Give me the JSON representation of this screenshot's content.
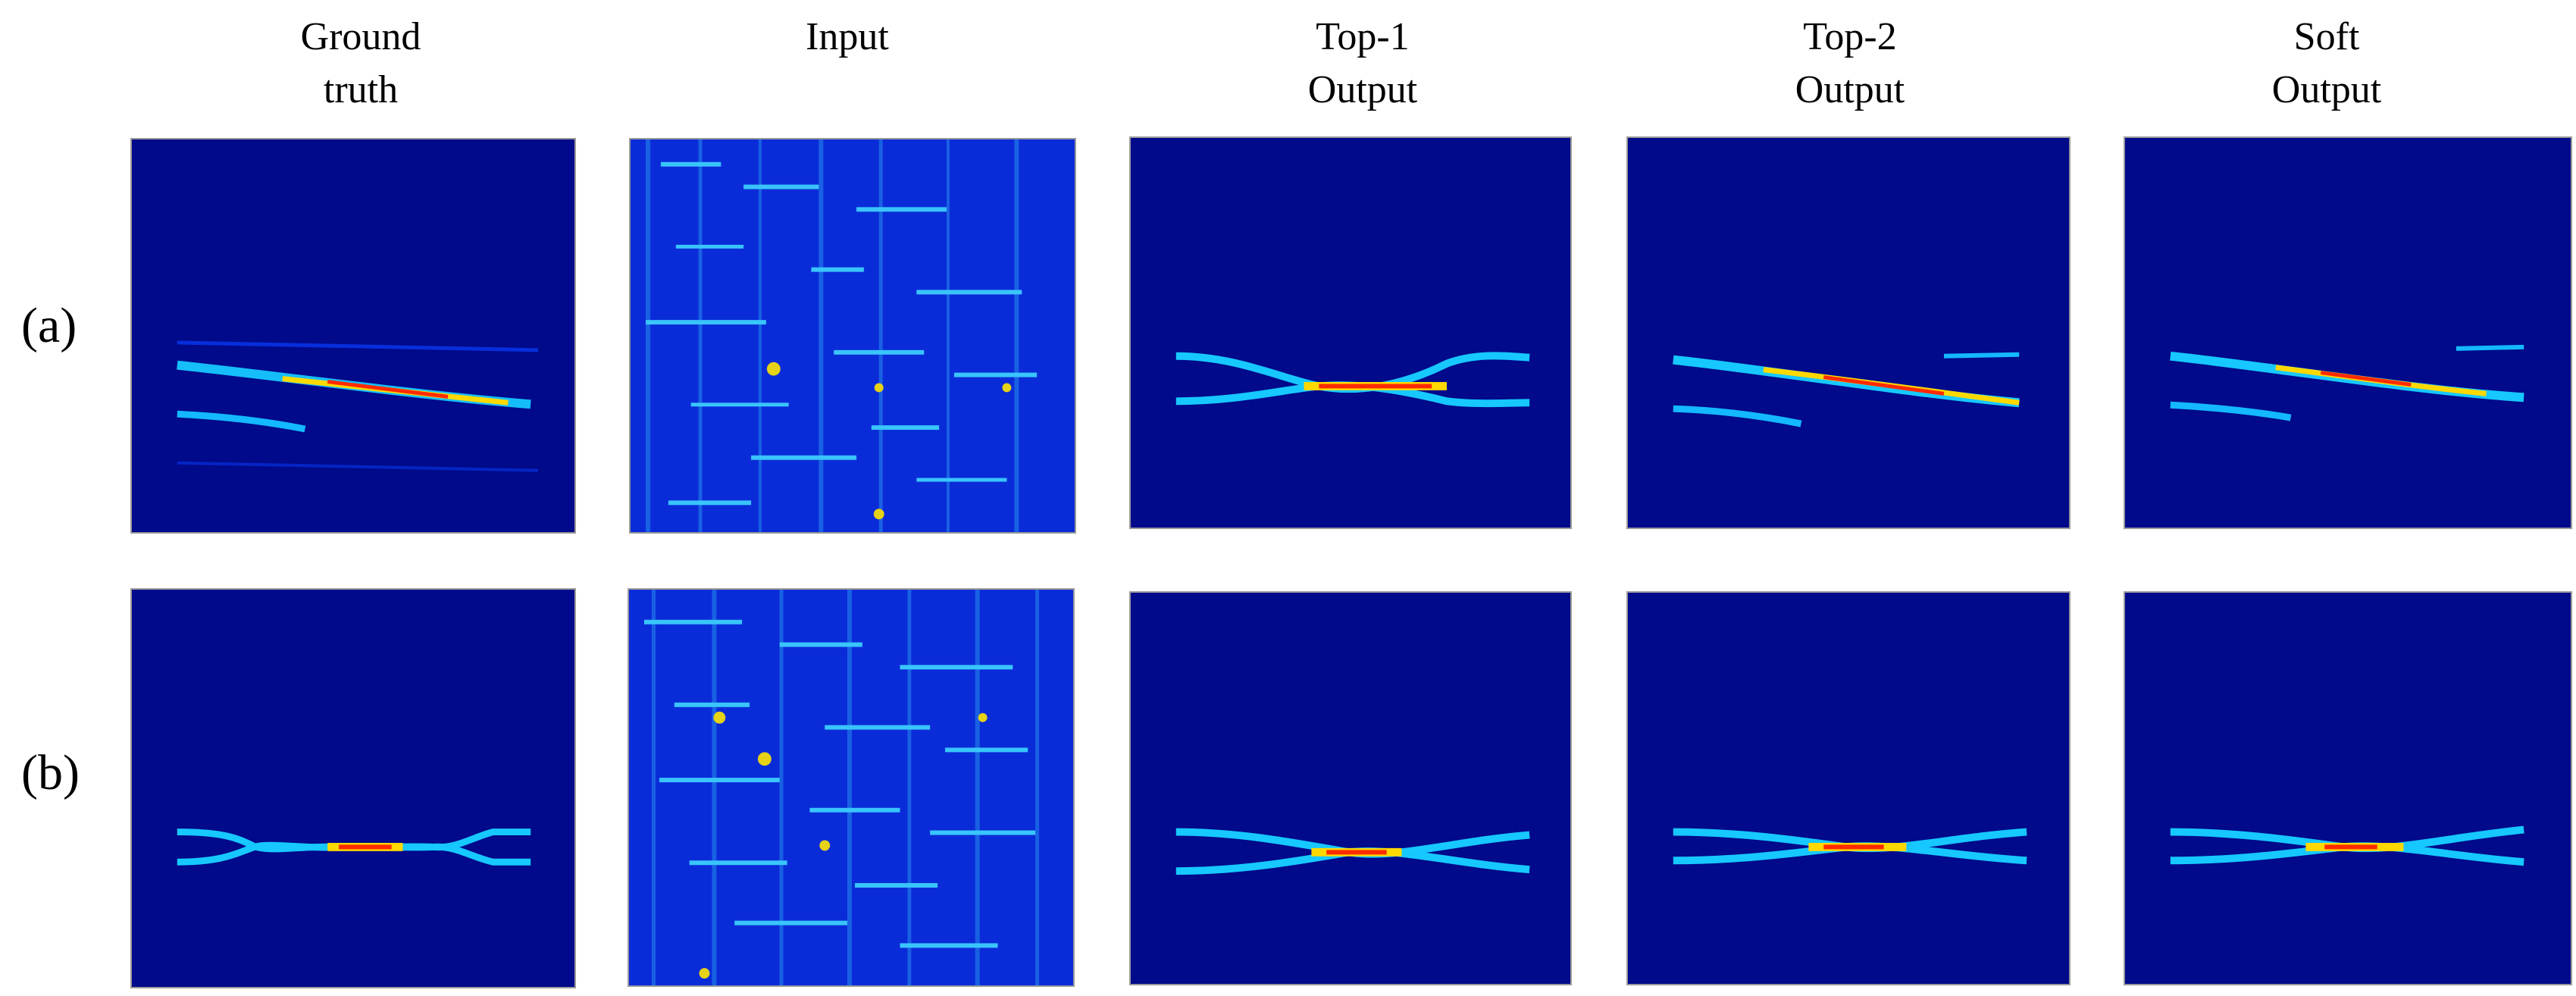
{
  "columns": [
    {
      "line1": "Ground",
      "line2": "truth"
    },
    {
      "line1": "Input",
      "line2": ""
    },
    {
      "line1": "Top-1",
      "line2": "Output"
    },
    {
      "line1": "Top-2",
      "line2": "Output"
    },
    {
      "line1": "Soft",
      "line2": "Output"
    }
  ],
  "rows": [
    {
      "label": "(a)"
    },
    {
      "label": "(b)"
    }
  ],
  "colors": {
    "background": "#00008f",
    "low": "#0a2cff",
    "mid": "#00ffff",
    "high": "#ffff00",
    "peak": "#ff0000"
  },
  "panels": {
    "a": [
      "ground-truth-a",
      "input-a",
      "top1-output-a",
      "top2-output-a",
      "soft-output-a"
    ],
    "b": [
      "ground-truth-b",
      "input-b",
      "top1-output-b",
      "top2-output-b",
      "soft-output-b"
    ]
  }
}
